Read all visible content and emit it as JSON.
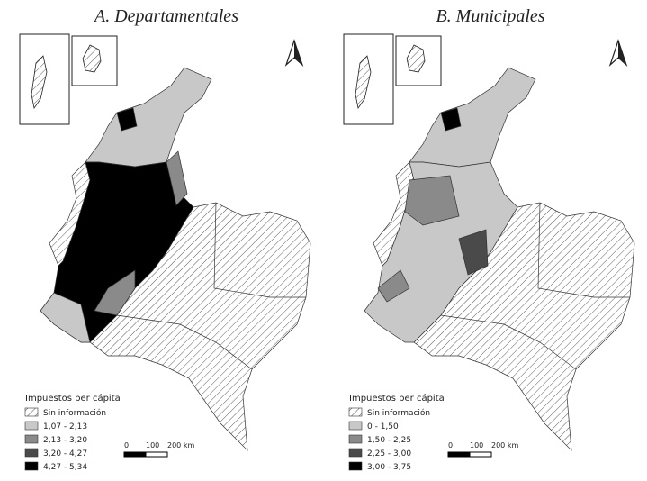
{
  "panels": [
    {
      "title": "A. Departamentales",
      "legend": {
        "title": "Impuestos per cápita",
        "items": [
          "Sin información",
          "1,07 - 2,13",
          "2,13 - 3,20",
          "3,20 - 4,27",
          "4,27 - 5,34"
        ]
      },
      "scale": [
        "0",
        "100",
        "200 km"
      ]
    },
    {
      "title": "B. Municipales",
      "legend": {
        "title": "Impuestos per cápita",
        "items": [
          "Sin información",
          "0 - 1,50",
          "1,50 - 2,25",
          "2,25 - 3,00",
          "3,00 - 3,75"
        ]
      },
      "scale": [
        "0",
        "100",
        "200 km"
      ]
    }
  ]
}
